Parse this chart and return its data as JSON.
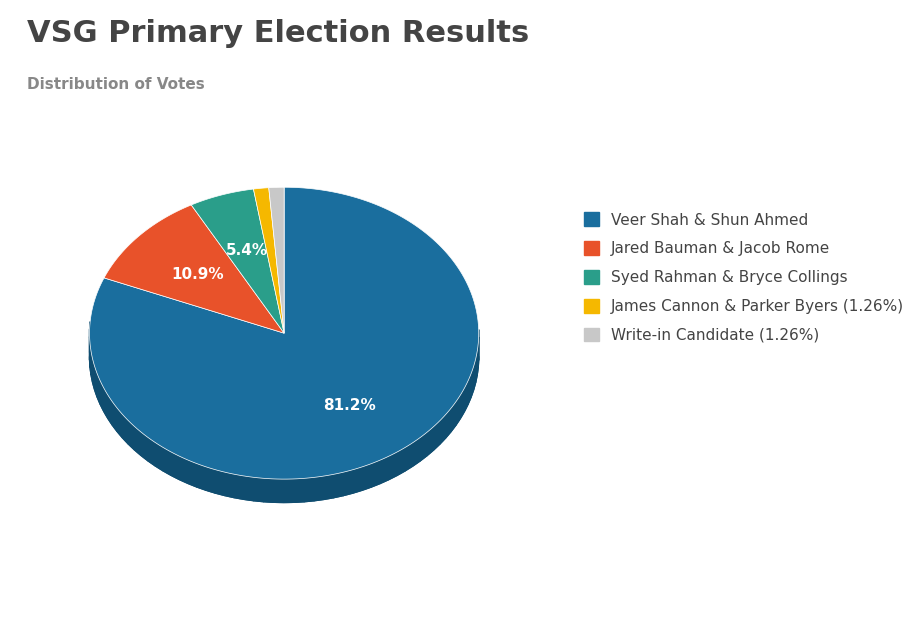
{
  "title": "VSG Primary Election Results",
  "subtitle": "Distribution of Votes",
  "slices": [
    81.2,
    10.9,
    5.4,
    1.26,
    1.26
  ],
  "labels": [
    "Veer Shah & Shun Ahmed",
    "Jared Bauman & Jacob Rome",
    "Syed Rahman & Bryce Collings",
    "James Cannon & Parker Byers (1.26%)",
    "Write-in Candidate (1.26%)"
  ],
  "colors": [
    "#1a6e9e",
    "#e8522a",
    "#2a9e8a",
    "#f5b800",
    "#c8c8c8"
  ],
  "shadow_colors": [
    "#0f4d70",
    "#a83818",
    "#1a7060",
    "#c49000",
    "#999999"
  ],
  "autopct_labels": [
    "81.2%",
    "10.9%",
    "5.4%",
    "",
    ""
  ],
  "title_fontsize": 22,
  "subtitle_fontsize": 11,
  "legend_fontsize": 11,
  "background_color": "#ffffff",
  "text_color": "#444444"
}
